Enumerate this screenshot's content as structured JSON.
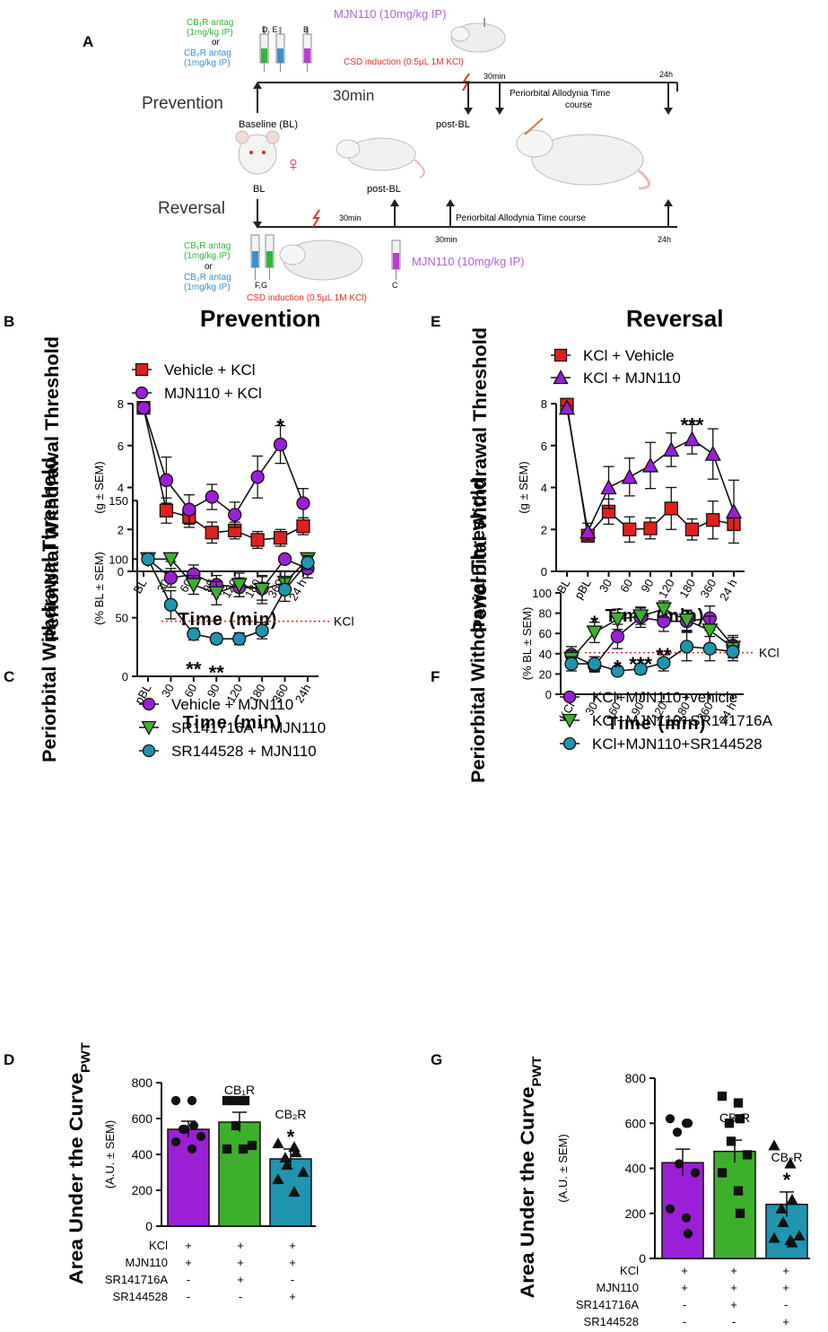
{
  "panel_A": {
    "label": "A",
    "prevention_label": "Prevention",
    "reversal_label": "Reversal",
    "cb1_antag": [
      "CB₁R antag",
      "(1mg/kg IP)"
    ],
    "or": "or",
    "cb2_antag": [
      "CB₂R antag",
      "(1mg/kg IP)"
    ],
    "mjn_dose": "MJN110 (10mg/kg IP)",
    "csd": "CSD induction (0.5µL 1M KCl)",
    "syringe_labels_top": [
      "D, E",
      "B"
    ],
    "syringe_labels_bottom": [
      "F,G",
      "C"
    ],
    "baseline": "Baseline (BL)",
    "post_bl": "post-BL",
    "bl": "BL",
    "t30": "30min",
    "t30_big": "30min",
    "t24": "24h",
    "timecourse_top": [
      "Periorbital Allodynia Time",
      "course"
    ],
    "timecourse_bottom": "Periorbital Allodynia Time course",
    "female": "♀"
  },
  "colors": {
    "red": "#e0201c",
    "purple": "#9b1fd6",
    "green": "#3cb02a",
    "teal": "#1f95b0",
    "timeline": "#222222",
    "csd_red": "#e8302a",
    "mjn_purple": "#b065d8",
    "cb1_green": "#2db83a",
    "cb2_blue": "#3c8fd0"
  },
  "chart_data": [
    {
      "panel": "B",
      "heading": "Prevention",
      "type": "line",
      "ylabel": "Periorbital Withdrawal Threshold",
      "yunit": "(g ± SEM)",
      "xlabel": "Time (min)",
      "categories": [
        "BL",
        "30",
        "60",
        "90",
        "120",
        "180",
        "360",
        "24 h"
      ],
      "ylim": [
        0,
        8
      ],
      "yticks": [
        "0",
        "2",
        "4",
        "6",
        "8"
      ],
      "series": [
        {
          "name": "Vehicle + KCl",
          "marker": "square",
          "color": "#e0201c",
          "values": [
            7.8,
            2.9,
            2.6,
            1.85,
            1.95,
            1.5,
            1.6,
            2.15
          ],
          "err": [
            0.1,
            0.6,
            0.5,
            0.5,
            0.4,
            0.4,
            0.4,
            0.4
          ]
        },
        {
          "name": "MJN110 + KCl",
          "marker": "circle",
          "color": "#9b1fd6",
          "values": [
            7.8,
            4.35,
            2.95,
            3.55,
            2.7,
            4.5,
            6.05,
            3.25
          ],
          "err": [
            0.1,
            1.1,
            0.7,
            0.6,
            0.6,
            1.0,
            0.9,
            0.7
          ]
        }
      ],
      "annotations": [
        {
          "x": "360",
          "text": "*"
        }
      ]
    },
    {
      "panel": "E",
      "heading": "Reversal",
      "type": "line",
      "ylabel": "Periorbital Withdrawal Threshold",
      "yunit": "(g ± SEM)",
      "xlabel": "Time (min)",
      "categories": [
        "BL",
        "pBL",
        "30",
        "60",
        "90",
        "120",
        "180",
        "360",
        "24 h"
      ],
      "ylim": [
        0,
        8
      ],
      "yticks": [
        "0",
        "2",
        "4",
        "6",
        "8"
      ],
      "series": [
        {
          "name": "KCl + Vehicle",
          "marker": "square",
          "color": "#e0201c",
          "values": [
            7.95,
            1.7,
            2.85,
            2.0,
            2.05,
            3.0,
            2.0,
            2.45,
            2.25
          ],
          "err": [
            0.1,
            0.3,
            0.6,
            0.6,
            0.5,
            1.0,
            0.5,
            0.9,
            0.3
          ]
        },
        {
          "name": "KCl + MJN110",
          "marker": "triangle",
          "color": "#9b1fd6",
          "values": [
            7.8,
            1.9,
            4.0,
            4.5,
            5.05,
            5.8,
            6.3,
            5.6,
            2.85
          ],
          "err": [
            0.1,
            0.4,
            1.0,
            0.9,
            1.1,
            0.8,
            0.7,
            1.2,
            1.5
          ]
        }
      ],
      "annotations": [
        {
          "x": "180",
          "text": "***"
        }
      ]
    },
    {
      "panel": "C",
      "type": "line",
      "ylabel": "Periorbital Withdrawal  Threshold",
      "yunit": "(% BL ± SEM)",
      "xlabel": "Time (min)",
      "categories": [
        "pBL",
        "30",
        "60",
        "90",
        "120",
        "180",
        "360",
        "24h"
      ],
      "ylim": [
        0,
        150
      ],
      "yticks": [
        "0",
        "50",
        "100",
        "150"
      ],
      "reference_line": {
        "value": 47,
        "label": "KCl"
      },
      "series": [
        {
          "name": "Vehicle + MJN110",
          "marker": "circle",
          "color": "#9b1fd6",
          "values": [
            100,
            84,
            87,
            78,
            76,
            75,
            100,
            92
          ],
          "err": [
            1,
            8,
            8,
            8,
            8,
            10,
            1,
            8
          ]
        },
        {
          "name": "SR141716A + MJN110",
          "marker": "triangle-down",
          "color": "#3cb02a",
          "values": [
            100,
            100,
            78,
            71,
            78,
            74,
            80,
            100
          ],
          "err": [
            1,
            2,
            8,
            10,
            10,
            12,
            10,
            3
          ]
        },
        {
          "name": "SR144528 + MJN110",
          "marker": "circle",
          "color": "#1f95b0",
          "values": [
            100,
            61,
            36,
            32,
            32,
            39,
            74,
            97
          ],
          "err": [
            1,
            12,
            5,
            4,
            5,
            7,
            10,
            6
          ]
        }
      ],
      "annotations": [
        {
          "x": "60",
          "text": "**"
        },
        {
          "x": "90",
          "text": "**"
        }
      ]
    },
    {
      "panel": "F",
      "type": "line",
      "ylabel": "Periorbital Withdrawal Threshold",
      "yunit": "(% BL ± SEM)",
      "xlabel": "Time (min)",
      "categories": [
        "KCl",
        "30",
        "60",
        "90",
        "120",
        "180",
        "360",
        "24 h"
      ],
      "ylim": [
        0,
        100
      ],
      "yticks": [
        "0",
        "20",
        "40",
        "60",
        "80",
        "100"
      ],
      "reference_line": {
        "value": 41,
        "label": "KCl"
      },
      "series": [
        {
          "name": "KCl+MJN110+vehicle",
          "marker": "circle",
          "color": "#9b1fd6",
          "values": [
            39,
            28,
            57,
            76,
            72,
            72,
            75,
            48
          ],
          "err": [
            8,
            6,
            12,
            10,
            10,
            10,
            12,
            10
          ]
        },
        {
          "name": "KCl+MJN110+SR141716A",
          "marker": "triangle-down",
          "color": "#3cb02a",
          "values": [
            35,
            61,
            74,
            77,
            84,
            73,
            63,
            46
          ],
          "err": [
            8,
            10,
            10,
            8,
            8,
            10,
            14,
            10
          ]
        },
        {
          "name": "KCl+MJN110+SR144528",
          "marker": "circle",
          "color": "#1f95b0",
          "values": [
            30,
            30,
            23,
            25,
            31,
            47,
            45,
            42
          ],
          "err": [
            7,
            7,
            4,
            5,
            8,
            14,
            12,
            9
          ]
        }
      ],
      "annotations": [
        {
          "x": "30",
          "text": "*"
        },
        {
          "x": "60",
          "text": "*"
        },
        {
          "x": "90",
          "text": "***"
        },
        {
          "x": "120",
          "text": "**"
        }
      ]
    },
    {
      "panel": "D",
      "type": "bar",
      "ylabel": "Area Under the Curve",
      "ylabel_sub": "PWT",
      "yunit": "(A.U. ± SEM)",
      "ylim": [
        0,
        800
      ],
      "yticks": [
        "0",
        "200",
        "400",
        "600",
        "800"
      ],
      "bars": [
        {
          "label": "",
          "value": 540,
          "err": 45,
          "color": "#9b1fd6",
          "marker": "circle",
          "points": [
            700,
            700,
            560,
            540,
            540,
            500,
            470,
            430
          ]
        },
        {
          "label": "CB₁R",
          "value": 580,
          "err": 55,
          "color": "#3cb02a",
          "marker": "square",
          "points": [
            700,
            700,
            700,
            700,
            560,
            450,
            430,
            430
          ]
        },
        {
          "label": "CB₂R",
          "value": 375,
          "err": 55,
          "color": "#1f95b0",
          "marker": "triangle",
          "points": [
            460,
            440,
            410,
            380,
            340,
            300,
            260,
            190
          ],
          "star": "*"
        }
      ],
      "conditions": [
        {
          "name": "KCl",
          "values": [
            "+",
            "+",
            "+"
          ]
        },
        {
          "name": "MJN110",
          "values": [
            "+",
            "+",
            "+"
          ]
        },
        {
          "name": "SR141716A",
          "values": [
            "-",
            "+",
            "-"
          ]
        },
        {
          "name": "SR144528",
          "values": [
            "-",
            "-",
            "+"
          ]
        }
      ]
    },
    {
      "panel": "G",
      "type": "bar",
      "ylabel": "Area Under the Curve",
      "ylabel_sub": "PWT",
      "yunit": "(A.U. ± SEM)",
      "ylim": [
        0,
        800
      ],
      "yticks": [
        "0",
        "200",
        "400",
        "600",
        "800"
      ],
      "bars": [
        {
          "label": "",
          "value": 425,
          "err": 60,
          "color": "#9b1fd6",
          "marker": "circle",
          "points": [
            620,
            600,
            600,
            560,
            420,
            380,
            220,
            180,
            110
          ]
        },
        {
          "label": "CB₁R",
          "value": 475,
          "err": 50,
          "color": "#3cb02a",
          "marker": "square",
          "points": [
            720,
            690,
            620,
            600,
            520,
            460,
            380,
            300,
            200
          ]
        },
        {
          "label": "CB₂R",
          "value": 240,
          "err": 55,
          "color": "#1f95b0",
          "marker": "triangle",
          "points": [
            500,
            420,
            260,
            220,
            160,
            100,
            90,
            80,
            70
          ],
          "star": "*"
        }
      ],
      "conditions": [
        {
          "name": "KCl",
          "values": [
            "+",
            "+",
            "+"
          ]
        },
        {
          "name": "MJN110",
          "values": [
            "+",
            "+",
            "+"
          ]
        },
        {
          "name": "SR141716A",
          "values": [
            "-",
            "+",
            "-"
          ]
        },
        {
          "name": "SR144528",
          "values": [
            "-",
            "-",
            "+"
          ]
        }
      ]
    }
  ]
}
